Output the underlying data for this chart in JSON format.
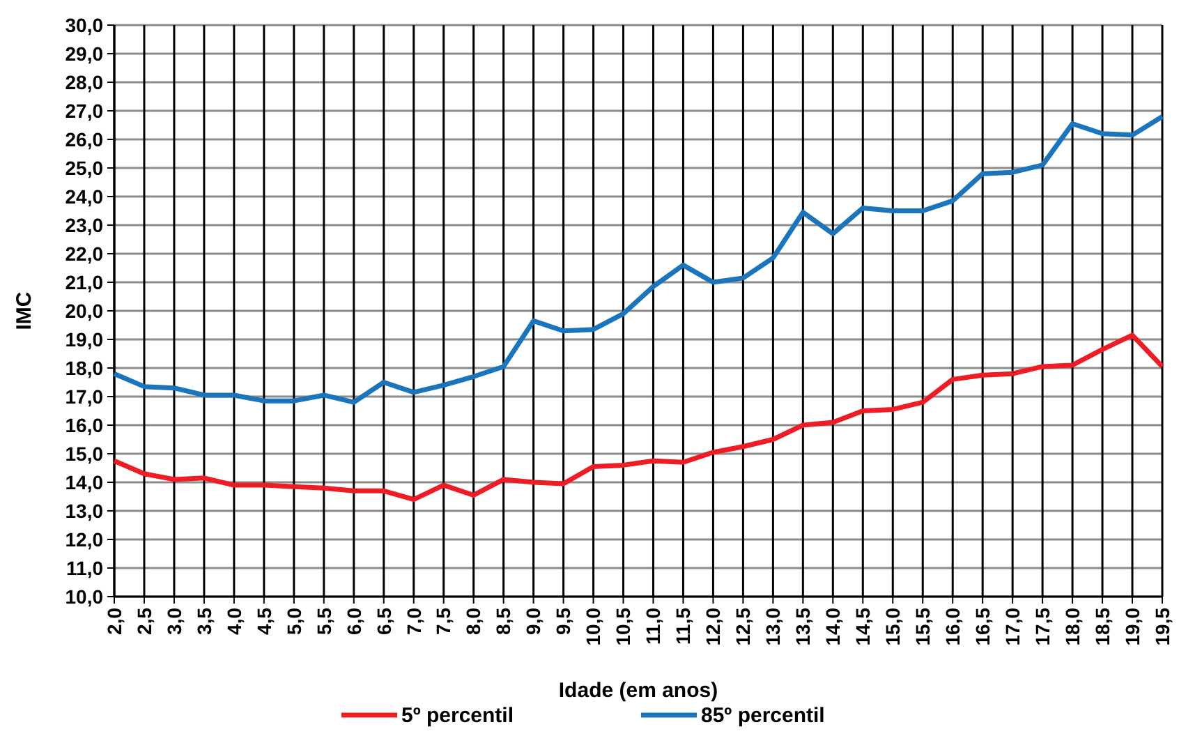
{
  "chart_data": {
    "type": "line",
    "xlabel": "Idade (em anos)",
    "ylabel": "IMC",
    "x": [
      2,
      2.5,
      3,
      3.5,
      4,
      4.5,
      5,
      5.5,
      6,
      6.5,
      7,
      7.5,
      8,
      8.5,
      9,
      9.5,
      10,
      10.5,
      11,
      11.5,
      12,
      12.5,
      13,
      13.5,
      14,
      14.5,
      15,
      15.5,
      16,
      16.5,
      17,
      17.5,
      18,
      18.5,
      19,
      19.5
    ],
    "series": [
      {
        "name": "5º percentil",
        "color": "#ee1c25",
        "values": [
          14.75,
          14.3,
          14.1,
          14.15,
          13.9,
          13.9,
          13.85,
          13.8,
          13.7,
          13.7,
          13.4,
          13.9,
          13.55,
          14.1,
          14.0,
          13.95,
          14.55,
          14.6,
          14.75,
          14.7,
          15.05,
          15.25,
          15.5,
          16.0,
          16.1,
          16.5,
          16.55,
          16.8,
          17.6,
          17.75,
          17.8,
          18.05,
          18.1,
          18.65,
          19.15,
          18.05
        ]
      },
      {
        "name": "85º percentil",
        "color": "#1a75bc",
        "values": [
          17.8,
          17.35,
          17.3,
          17.05,
          17.05,
          16.85,
          16.85,
          17.05,
          16.8,
          17.5,
          17.15,
          17.4,
          17.7,
          18.05,
          19.65,
          19.3,
          19.35,
          19.9,
          20.85,
          21.6,
          21.0,
          21.15,
          21.85,
          23.45,
          22.7,
          23.6,
          23.5,
          23.5,
          23.85,
          24.8,
          24.85,
          25.1,
          26.55,
          26.2,
          26.15,
          26.8
        ]
      }
    ],
    "xlim": [
      2,
      19.5
    ],
    "xticks": [
      {
        "value": 2,
        "label": "2,0"
      },
      {
        "value": 2.5,
        "label": "2,5"
      },
      {
        "value": 3,
        "label": "3,0"
      },
      {
        "value": 3.5,
        "label": "3,5"
      },
      {
        "value": 4,
        "label": "4,0"
      },
      {
        "value": 4.5,
        "label": "4,5"
      },
      {
        "value": 5,
        "label": "5,0"
      },
      {
        "value": 5.5,
        "label": "5,5"
      },
      {
        "value": 6,
        "label": "6,0"
      },
      {
        "value": 6.5,
        "label": "6,5"
      },
      {
        "value": 7,
        "label": "7,0"
      },
      {
        "value": 7.5,
        "label": "7,5"
      },
      {
        "value": 8,
        "label": "8,0"
      },
      {
        "value": 8.5,
        "label": "8,5"
      },
      {
        "value": 9,
        "label": "9,0"
      },
      {
        "value": 9.5,
        "label": "9,5"
      },
      {
        "value": 10,
        "label": "10,0"
      },
      {
        "value": 10.5,
        "label": "10,5"
      },
      {
        "value": 11,
        "label": "11,0"
      },
      {
        "value": 11.5,
        "label": "11,5"
      },
      {
        "value": 12,
        "label": "12,0"
      },
      {
        "value": 12.5,
        "label": "12,5"
      },
      {
        "value": 13,
        "label": "13,0"
      },
      {
        "value": 13.5,
        "label": "13,5"
      },
      {
        "value": 14,
        "label": "14,0"
      },
      {
        "value": 14.5,
        "label": "14,5"
      },
      {
        "value": 15,
        "label": "15,0"
      },
      {
        "value": 15.5,
        "label": "15,5"
      },
      {
        "value": 16,
        "label": "16,0"
      },
      {
        "value": 16.5,
        "label": "16,5"
      },
      {
        "value": 17,
        "label": "17,0"
      },
      {
        "value": 17.5,
        "label": "17,5"
      },
      {
        "value": 18,
        "label": "18,0"
      },
      {
        "value": 18.5,
        "label": "18,5"
      },
      {
        "value": 19,
        "label": "19,0"
      },
      {
        "value": 19.5,
        "label": "19,5"
      }
    ],
    "ylim": [
      10,
      30
    ],
    "yticks": [
      {
        "value": 10,
        "label": "10,0"
      },
      {
        "value": 11,
        "label": "11,0"
      },
      {
        "value": 12,
        "label": "12,0"
      },
      {
        "value": 13,
        "label": "13,0"
      },
      {
        "value": 14,
        "label": "14,0"
      },
      {
        "value": 15,
        "label": "15,0"
      },
      {
        "value": 16,
        "label": "16,0"
      },
      {
        "value": 17,
        "label": "17,0"
      },
      {
        "value": 18,
        "label": "18,0"
      },
      {
        "value": 19,
        "label": "19,0"
      },
      {
        "value": 20,
        "label": "20,0"
      },
      {
        "value": 21,
        "label": "21,0"
      },
      {
        "value": 22,
        "label": "22,0"
      },
      {
        "value": 23,
        "label": "23,0"
      },
      {
        "value": 24,
        "label": "24,0"
      },
      {
        "value": 25,
        "label": "25,0"
      },
      {
        "value": 26,
        "label": "26,0"
      },
      {
        "value": 27,
        "label": "27,0"
      },
      {
        "value": 28,
        "label": "28,0"
      },
      {
        "value": 29,
        "label": "29,0"
      },
      {
        "value": 30,
        "label": "30,0"
      }
    ],
    "grid": true,
    "legend": "bottom",
    "marker": "none",
    "line_style": "solid"
  }
}
